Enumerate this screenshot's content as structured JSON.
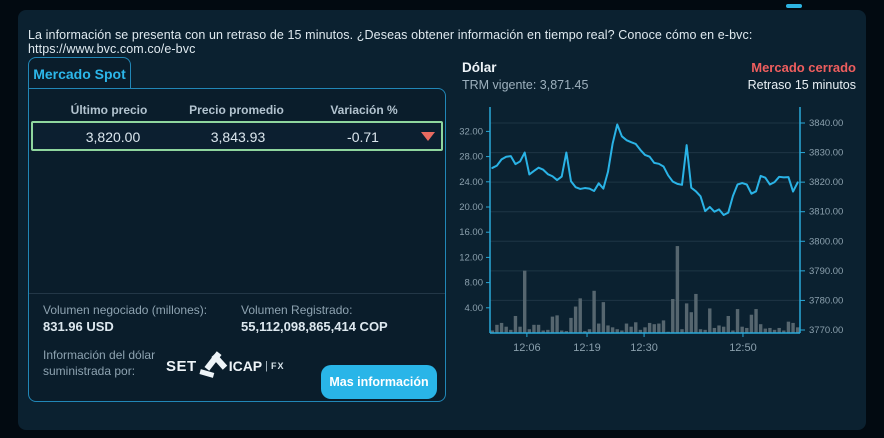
{
  "banner": {
    "text": "La información se presenta con un retraso de 15 minutos. ¿Deseas obtener información en tiempo real? Conoce cómo en e-bvc: https://www.bvc.com.co/e-bvc"
  },
  "spot_card": {
    "tab_label": "Mercado Spot",
    "table": {
      "headers": [
        "Último precio",
        "Precio promedio",
        "Variación %"
      ],
      "row": {
        "ultimo_precio": "3,820.00",
        "precio_promedio": "3,843.93",
        "variacion": "-0.71",
        "direction": "down"
      }
    },
    "volumen_negociado_label": "Volumen negociado (millones):",
    "volumen_negociado_value": "831.96 USD",
    "volumen_registrado_label": "Volumen Registrado:",
    "volumen_registrado_value": "55,112,098,865,414 COP",
    "fuente_label": "Información del dólar suministrada por:",
    "logo_set": "SET",
    "logo_icap": "ICAP",
    "logo_sep": "|",
    "logo_fx": "FX",
    "more_info_button": "Mas información"
  },
  "dollar_panel": {
    "title": "Dólar",
    "trm_label": "TRM vigente:",
    "trm_value": "3,871.45",
    "trm_text": "TRM vigente: 3,871.45",
    "market_status": "Mercado cerrado",
    "delay": "Retraso 15 minutos"
  },
  "colors": {
    "accent_cyan": "#29b5e8",
    "row_highlight_green": "#8fd69e",
    "status_red": "#ef5e5e",
    "triangle_red": "#e96a60",
    "bar_gray": "#56666f",
    "panel_bg": "#0b2130",
    "card_bg": "#0a1d2b"
  },
  "chart_data": {
    "type": "line+bar",
    "x_axis": {
      "ticks": [
        {
          "pos": 0.119,
          "label": "12:06"
        },
        {
          "pos": 0.313,
          "label": "12:19"
        },
        {
          "pos": 0.497,
          "label": "12:30"
        },
        {
          "pos": 0.816,
          "label": "12:50"
        }
      ]
    },
    "left_axis": {
      "applies_to": "volumen (millones USD)",
      "min": 0,
      "max": 35,
      "ticks": [
        4,
        8,
        12,
        16,
        20,
        24,
        28,
        32
      ]
    },
    "right_axis": {
      "applies_to": "precio COP/USD",
      "min": 3769,
      "max": 3843,
      "ticks": [
        3770,
        3780,
        3790,
        3800,
        3810,
        3820,
        3830,
        3840
      ]
    },
    "grid": "horizontal",
    "legend": "none",
    "series": [
      {
        "name": "precio",
        "type": "line",
        "axis": "right",
        "color": "#2ab3e6",
        "values": [
          3824.8,
          3825.6,
          3827.7,
          3828.6,
          3828.8,
          3826.1,
          3827.0,
          3830.0,
          3822.6,
          3823.8,
          3824.9,
          3824.2,
          3822.7,
          3822.0,
          3820.7,
          3821.9,
          3830.0,
          3820.3,
          3818.3,
          3817.7,
          3818.0,
          3817.8,
          3817.0,
          3819.6,
          3817.8,
          3823.5,
          3833.0,
          3839.5,
          3835.5,
          3834.2,
          3833.5,
          3832.9,
          3830.9,
          3829.2,
          3828.6,
          3826.5,
          3826.2,
          3825.3,
          3822.3,
          3820.2,
          3819.4,
          3819.1,
          3832.5,
          3818.1,
          3816.9,
          3815.2,
          3810.2,
          3811.6,
          3810.0,
          3810.8,
          3808.9,
          3809.7,
          3815.3,
          3819.2,
          3819.7,
          3819.2,
          3816.1,
          3816.9,
          3822.1,
          3821.5,
          3819.2,
          3820.0,
          3821.8,
          3821.6,
          3821.7,
          3816.8,
          3819.9
        ]
      },
      {
        "name": "volumen",
        "type": "bar",
        "axis": "left",
        "color": "#56666f",
        "values": [
          0.4,
          1.3,
          1.6,
          1.0,
          0.5,
          2.7,
          1.0,
          9.9,
          0.6,
          1.3,
          1.3,
          0.4,
          0.5,
          2.6,
          2.8,
          0.4,
          0.3,
          2.4,
          4.2,
          5.5,
          0.3,
          0.6,
          6.7,
          1.5,
          4.9,
          1.2,
          0.9,
          0.6,
          0.4,
          1.5,
          1.0,
          1.7,
          0.5,
          0.9,
          1.6,
          1.4,
          1.5,
          2.0,
          0.2,
          5.4,
          13.8,
          0.6,
          4.7,
          3.3,
          6.2,
          0.6,
          0.5,
          3.9,
          0.8,
          1.2,
          1.0,
          2.7,
          0.4,
          3.8,
          1.0,
          0.8,
          2.9,
          3.8,
          1.4,
          0.7,
          0.8,
          0.5,
          0.8,
          0.4,
          1.8,
          1.6,
          0.9
        ]
      }
    ]
  }
}
